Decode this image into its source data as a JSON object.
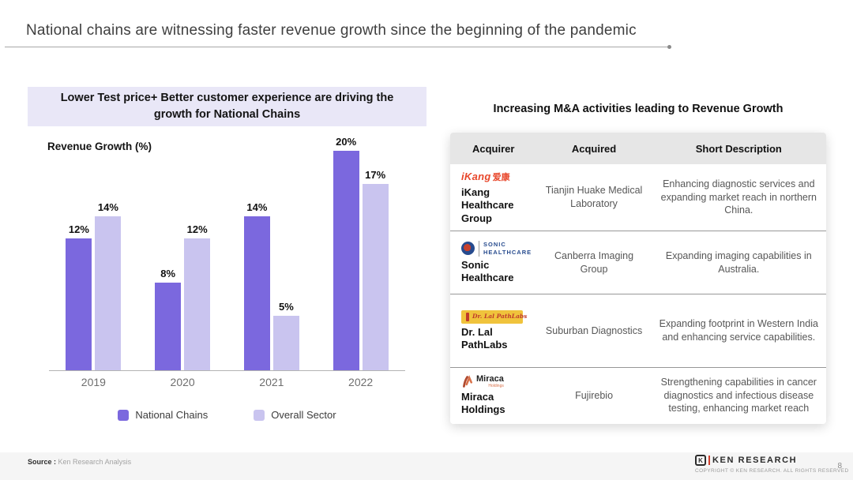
{
  "slide": {
    "title": "National chains are witnessing faster revenue growth since the beginning of the pandemic",
    "page_number": "8"
  },
  "left_panel": {
    "header": "Lower Test price+ Better customer experience are driving the growth for National Chains"
  },
  "chart_data": {
    "type": "bar",
    "title": "Lower Test price+ Better customer experience are driving the growth for National Chains",
    "ylabel": "Revenue Growth (%)",
    "xlabel": "",
    "categories": [
      "2019",
      "2020",
      "2021",
      "2022"
    ],
    "series": [
      {
        "name": "National Chains",
        "color": "#7B68DE",
        "values": [
          12,
          8,
          14,
          20
        ]
      },
      {
        "name": "Overall Sector",
        "color": "#C9C4EF",
        "values": [
          14,
          12,
          5,
          17
        ]
      }
    ],
    "value_suffix": "%",
    "ylim": [
      0,
      20
    ],
    "grid": false,
    "legend_position": "bottom"
  },
  "right_panel": {
    "title": "Increasing M&A activities leading to Revenue Growth",
    "table": {
      "headers": [
        "Acquirer",
        "Acquired",
        "Short Description"
      ],
      "rows": [
        {
          "logo_text": "iKang",
          "logo_text_cjk": "爱康",
          "acquirer": "iKang Healthcare Group",
          "acquired": "Tianjin Huake Medical Laboratory",
          "description": "Enhancing diagnostic services and expanding market reach in northern China."
        },
        {
          "logo_text": "SONIC HEALTHCARE",
          "acquirer": "Sonic Healthcare",
          "acquired": "Canberra Imaging Group",
          "description": "Expanding imaging capabilities in Australia."
        },
        {
          "logo_text": "Dr. Lal PathLabs",
          "acquirer": "Dr. Lal PathLabs",
          "acquired": "Suburban Diagnostics",
          "description": "Expanding footprint in Western India and enhancing service capabilities."
        },
        {
          "logo_text": "Miraca",
          "logo_subtext": "Holdings",
          "acquirer": "Miraca Holdings",
          "acquired": "Fujirebio",
          "description": "Strengthening capabilities in cancer diagnostics and infectious disease testing, enhancing market reach"
        }
      ]
    }
  },
  "footer": {
    "source_label": "Source :",
    "source_value": "Ken Research Analysis",
    "logo_letter": "K",
    "brand": "KEN RESEARCH",
    "copyright": "COPYRIGHT © KEN RESEARCH. ALL RIGHTS RESERVED"
  }
}
